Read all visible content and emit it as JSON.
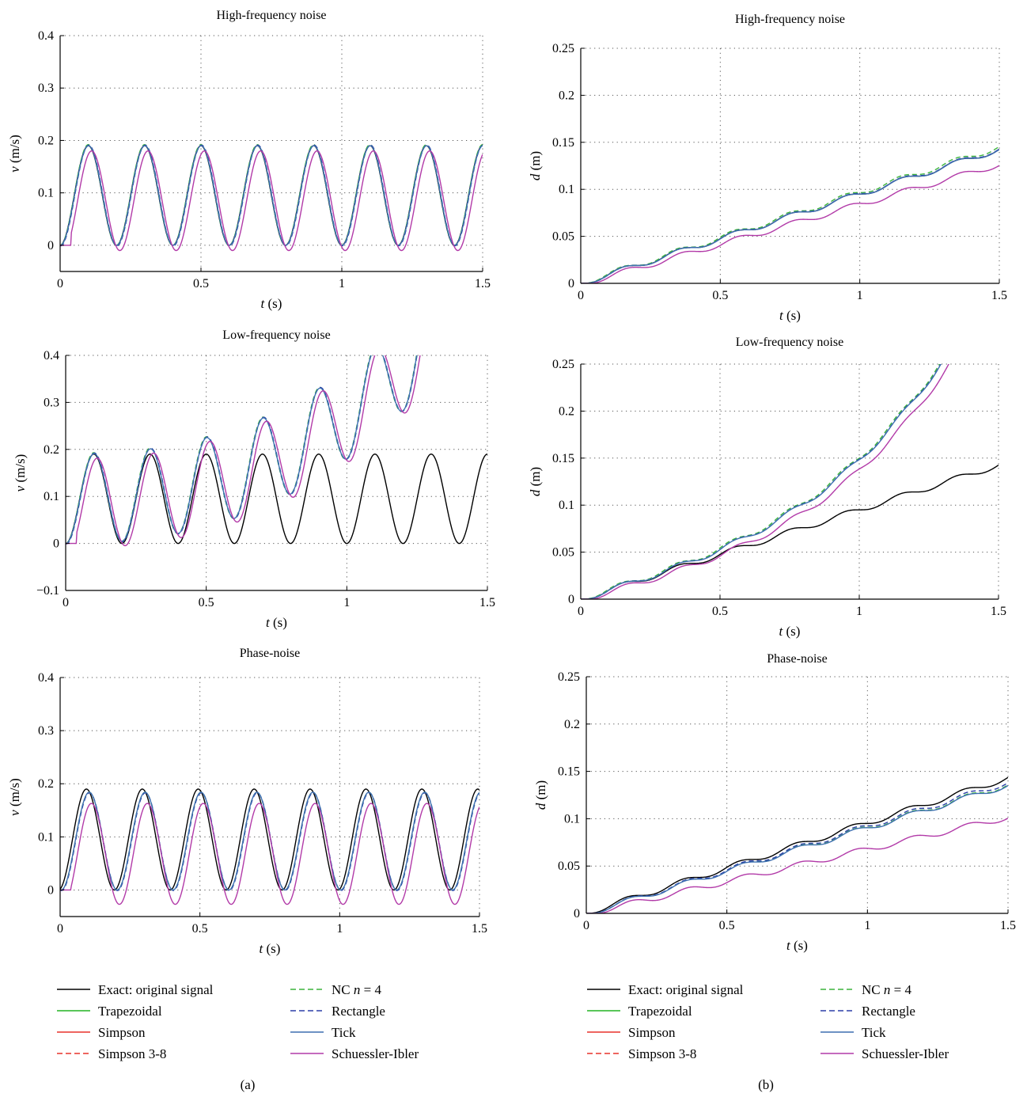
{
  "figure": {
    "panel_labels": [
      "(a)",
      "(b)"
    ]
  },
  "legend": {
    "entries": [
      {
        "label": "Exact: original signal",
        "color": "#000000",
        "dash": false
      },
      {
        "label": "Trapezoidal",
        "color": "#22b422",
        "dash": false
      },
      {
        "label": "Simpson",
        "color": "#e8322a",
        "dash": false
      },
      {
        "label": "Simpson 3-8",
        "color": "#e8322a",
        "dash": true
      },
      {
        "label": "NC n = 4",
        "color": "#3cb43c",
        "dash": true
      },
      {
        "label": "Rectangle",
        "color": "#2b3fa8",
        "dash": true
      },
      {
        "label": "Tick",
        "color": "#3d6fb0",
        "dash": false
      },
      {
        "label": "Schuessler-Ibler",
        "color": "#b23aa8",
        "dash": false
      }
    ]
  },
  "chart_data": [
    {
      "id": "a1",
      "type": "line",
      "title": "High-frequency noise",
      "xlabel": "t (s)",
      "ylabel": "v (m/s)",
      "xlim": [
        0,
        1.5
      ],
      "ylim": [
        -0.05,
        0.4
      ],
      "xticks": [
        0,
        0.5,
        1,
        1.5
      ],
      "xtick_labels": [
        "0",
        "0.5",
        "1",
        "1.5"
      ],
      "yticks": [
        0,
        0.1,
        0.2,
        0.3,
        0.4
      ],
      "ytick_labels": [
        "0",
        "0.1",
        "0.2",
        "0.3",
        "0.4"
      ],
      "grid": true,
      "series": [
        {
          "name": "Exact: original signal",
          "color": "#000000",
          "dash": false,
          "model": "sin",
          "period": 0.2,
          "amp": 0.095,
          "offset": 0.095,
          "phase": 0,
          "delay": 0
        },
        {
          "name": "NC n = 4",
          "color": "#3cb43c",
          "dash": true,
          "model": "sin",
          "period": 0.2,
          "amp": 0.096,
          "offset": 0.096,
          "phase": 0,
          "delay": 0
        },
        {
          "name": "Rectangle",
          "color": "#2b3fa8",
          "dash": true,
          "model": "sin",
          "period": 0.2,
          "amp": 0.096,
          "offset": 0.095,
          "phase": 0.002,
          "delay": 0
        },
        {
          "name": "Tick",
          "color": "#3d6fb0",
          "dash": false,
          "model": "sin",
          "period": 0.2,
          "amp": 0.095,
          "offset": 0.095,
          "phase": 0.001,
          "delay": 0
        },
        {
          "name": "Schuessler-Ibler",
          "color": "#b23aa8",
          "dash": false,
          "model": "sin",
          "period": 0.2,
          "amp": 0.095,
          "offset": 0.085,
          "phase": 0.012,
          "delay": 0.04
        }
      ]
    },
    {
      "id": "a2",
      "type": "line",
      "title": "Low-frequency noise",
      "xlabel": "t (s)",
      "ylabel": "v (m/s)",
      "xlim": [
        0,
        1.5
      ],
      "ylim": [
        -0.1,
        0.4
      ],
      "xticks": [
        0,
        0.5,
        1,
        1.5
      ],
      "xtick_labels": [
        "0",
        "0.5",
        "1",
        "1.5"
      ],
      "yticks": [
        -0.1,
        0,
        0.1,
        0.2,
        0.3,
        0.4
      ],
      "ytick_labels": [
        "−0.1",
        "0",
        "0.1",
        "0.2",
        "0.3",
        "0.4"
      ],
      "grid": true,
      "series": [
        {
          "name": "Exact: original signal",
          "color": "#000000",
          "dash": false,
          "model": "sin",
          "period": 0.2,
          "amp": 0.095,
          "offset": 0.095,
          "phase": 0,
          "delay": 0
        },
        {
          "name": "NC n = 4",
          "color": "#3cb43c",
          "dash": true,
          "model": "sin",
          "period": 0.2,
          "amp": 0.096,
          "offset": 0.096,
          "phase": 0,
          "delay": 0,
          "drift": [
            0,
            0.2,
            0.8
          ]
        },
        {
          "name": "Rectangle",
          "color": "#2b3fa8",
          "dash": true,
          "model": "sin",
          "period": 0.2,
          "amp": 0.096,
          "offset": 0.095,
          "phase": 0.002,
          "delay": 0,
          "drift": [
            0,
            0.2,
            0.8
          ]
        },
        {
          "name": "Tick",
          "color": "#3d6fb0",
          "dash": false,
          "model": "sin",
          "period": 0.2,
          "amp": 0.095,
          "offset": 0.095,
          "phase": 0.001,
          "delay": 0,
          "drift": [
            0,
            0.2,
            0.8
          ]
        },
        {
          "name": "Schuessler-Ibler",
          "color": "#b23aa8",
          "dash": false,
          "model": "sin",
          "period": 0.2,
          "amp": 0.095,
          "offset": 0.085,
          "phase": 0.012,
          "delay": 0.04,
          "drift": [
            0,
            0.2,
            0.8
          ]
        }
      ]
    },
    {
      "id": "a3",
      "type": "line",
      "title": "Phase-noise",
      "xlabel": "t (s)",
      "ylabel": "v (m/s)",
      "xlim": [
        0,
        1.5
      ],
      "ylim": [
        -0.05,
        0.4
      ],
      "xticks": [
        0,
        0.5,
        1,
        1.5
      ],
      "xtick_labels": [
        "0",
        "0.5",
        "1",
        "1.5"
      ],
      "yticks": [
        0,
        0.1,
        0.2,
        0.3,
        0.4
      ],
      "ytick_labels": [
        "0",
        "0.1",
        "0.2",
        "0.3",
        "0.4"
      ],
      "grid": true,
      "series": [
        {
          "name": "Exact: original signal",
          "color": "#000000",
          "dash": false,
          "model": "sin",
          "period": 0.2,
          "amp": 0.095,
          "offset": 0.095,
          "phase": -0.006,
          "delay": 0
        },
        {
          "name": "NC n = 4",
          "color": "#3cb43c",
          "dash": true,
          "model": "sin",
          "period": 0.2,
          "amp": 0.092,
          "offset": 0.092,
          "phase": 0.004,
          "delay": 0
        },
        {
          "name": "Rectangle",
          "color": "#2b3fa8",
          "dash": true,
          "model": "sin",
          "period": 0.2,
          "amp": 0.092,
          "offset": 0.091,
          "phase": 0.005,
          "delay": 0
        },
        {
          "name": "Tick",
          "color": "#3d6fb0",
          "dash": false,
          "model": "sin",
          "period": 0.2,
          "amp": 0.092,
          "offset": 0.092,
          "phase": 0.004,
          "delay": 0
        },
        {
          "name": "Schuessler-Ibler",
          "color": "#b23aa8",
          "dash": false,
          "model": "sin",
          "period": 0.2,
          "amp": 0.095,
          "offset": 0.068,
          "phase": 0.012,
          "delay": 0.04
        }
      ]
    },
    {
      "id": "b1",
      "type": "line",
      "title": "High-frequency noise",
      "xlabel": "t (s)",
      "ylabel": "d (m)",
      "xlim": [
        0,
        1.5
      ],
      "ylim": [
        0,
        0.25
      ],
      "xticks": [
        0,
        0.5,
        1,
        1.5
      ],
      "xtick_labels": [
        "0",
        "0.5",
        "1",
        "1.5"
      ],
      "yticks": [
        0,
        0.05,
        0.1,
        0.15,
        0.2,
        0.25
      ],
      "ytick_labels": [
        "0",
        "0.05",
        "0.1",
        "0.15",
        "0.2",
        "0.25"
      ],
      "grid": true,
      "series": [
        {
          "name": "Exact: original signal",
          "color": "#000000",
          "dash": false,
          "model": "integral",
          "period": 0.2,
          "amp": 0.095,
          "offset": 0.095,
          "phase": 0,
          "delay": 0
        },
        {
          "name": "NC n = 4",
          "color": "#3cb43c",
          "dash": true,
          "model": "integral",
          "period": 0.2,
          "amp": 0.096,
          "offset": 0.0965,
          "phase": -0.004,
          "delay": 0
        },
        {
          "name": "Rectangle",
          "color": "#2b3fa8",
          "dash": true,
          "model": "integral",
          "period": 0.2,
          "amp": 0.095,
          "offset": 0.0955,
          "phase": 0.002,
          "delay": 0
        },
        {
          "name": "Tick",
          "color": "#3d6fb0",
          "dash": false,
          "model": "integral",
          "period": 0.2,
          "amp": 0.095,
          "offset": 0.095,
          "phase": 0.001,
          "delay": 0
        },
        {
          "name": "Schuessler-Ibler",
          "color": "#b23aa8",
          "dash": false,
          "model": "integral",
          "period": 0.2,
          "amp": 0.095,
          "offset": 0.085,
          "phase": 0.012,
          "delay": 0.04
        }
      ]
    },
    {
      "id": "b2",
      "type": "line",
      "title": "Low-frequency noise",
      "xlabel": "t (s)",
      "ylabel": "d (m)",
      "xlim": [
        0,
        1.5
      ],
      "ylim": [
        0,
        0.25
      ],
      "xticks": [
        0,
        0.5,
        1,
        1.5
      ],
      "xtick_labels": [
        "0",
        "0.5",
        "1",
        "1.5"
      ],
      "yticks": [
        0,
        0.05,
        0.1,
        0.15,
        0.2,
        0.25
      ],
      "ytick_labels": [
        "0",
        "0.05",
        "0.1",
        "0.15",
        "0.2",
        "0.25"
      ],
      "grid": true,
      "series": [
        {
          "name": "Exact: original signal",
          "color": "#000000",
          "dash": false,
          "model": "integral",
          "period": 0.2,
          "amp": 0.095,
          "offset": 0.095,
          "phase": 0,
          "delay": 0
        },
        {
          "name": "NC n = 4",
          "color": "#3cb43c",
          "dash": true,
          "model": "integral",
          "period": 0.2,
          "amp": 0.096,
          "offset": 0.0965,
          "phase": -0.004,
          "delay": 0,
          "drift": [
            0,
            0.2,
            0.8
          ]
        },
        {
          "name": "Rectangle",
          "color": "#2b3fa8",
          "dash": true,
          "model": "integral",
          "period": 0.2,
          "amp": 0.095,
          "offset": 0.0955,
          "phase": 0.002,
          "delay": 0,
          "drift": [
            0,
            0.2,
            0.8
          ]
        },
        {
          "name": "Tick",
          "color": "#3d6fb0",
          "dash": false,
          "model": "integral",
          "period": 0.2,
          "amp": 0.095,
          "offset": 0.095,
          "phase": 0.001,
          "delay": 0,
          "drift": [
            0,
            0.2,
            0.8
          ]
        },
        {
          "name": "Schuessler-Ibler",
          "color": "#b23aa8",
          "dash": false,
          "model": "integral",
          "period": 0.2,
          "amp": 0.095,
          "offset": 0.085,
          "phase": 0.012,
          "delay": 0.04,
          "drift": [
            0,
            0.2,
            0.8
          ]
        }
      ]
    },
    {
      "id": "b3",
      "type": "line",
      "title": "Phase-noise",
      "xlabel": "t (s)",
      "ylabel": "d (m)",
      "xlim": [
        0,
        1.5
      ],
      "ylim": [
        0,
        0.25
      ],
      "xticks": [
        0,
        0.5,
        1,
        1.5
      ],
      "xtick_labels": [
        "0",
        "0.5",
        "1",
        "1.5"
      ],
      "yticks": [
        0,
        0.05,
        0.1,
        0.15,
        0.2,
        0.25
      ],
      "ytick_labels": [
        "0",
        "0.05",
        "0.1",
        "0.15",
        "0.2",
        "0.25"
      ],
      "grid": true,
      "series": [
        {
          "name": "Exact: original signal",
          "color": "#000000",
          "dash": false,
          "model": "integral",
          "period": 0.2,
          "amp": 0.095,
          "offset": 0.095,
          "phase": -0.006,
          "delay": 0
        },
        {
          "name": "NC n = 4",
          "color": "#3cb43c",
          "dash": true,
          "model": "integral",
          "period": 0.2,
          "amp": 0.092,
          "offset": 0.091,
          "phase": 0.004,
          "delay": 0
        },
        {
          "name": "Rectangle",
          "color": "#2b3fa8",
          "dash": true,
          "model": "integral",
          "period": 0.2,
          "amp": 0.092,
          "offset": 0.0925,
          "phase": 0.004,
          "delay": 0
        },
        {
          "name": "Tick",
          "color": "#3d6fb0",
          "dash": false,
          "model": "integral",
          "period": 0.2,
          "amp": 0.092,
          "offset": 0.0905,
          "phase": 0.004,
          "delay": 0
        },
        {
          "name": "Schuessler-Ibler",
          "color": "#b23aa8",
          "dash": false,
          "model": "integral",
          "period": 0.2,
          "amp": 0.095,
          "offset": 0.068,
          "phase": 0.012,
          "delay": 0.04
        }
      ]
    }
  ]
}
